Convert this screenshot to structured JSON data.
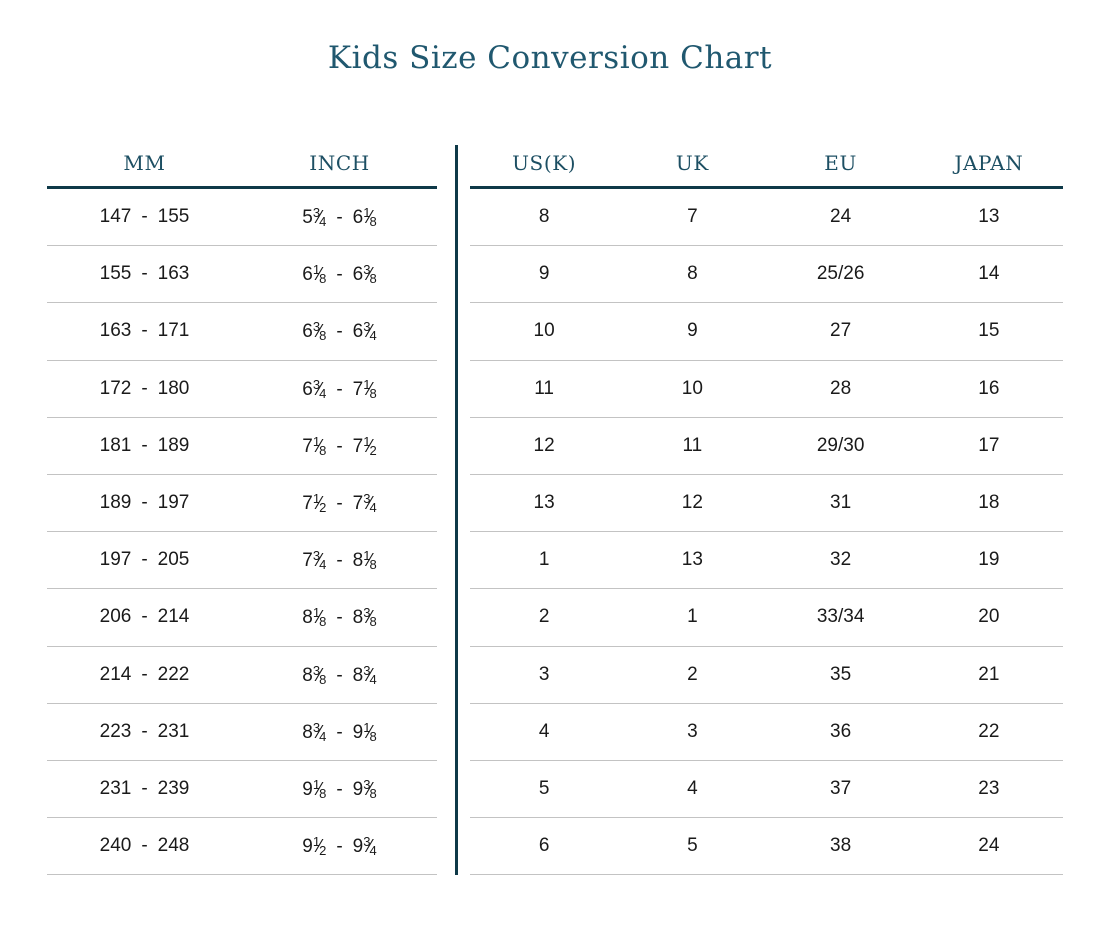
{
  "title": "Kids Size Conversion Chart",
  "colors": {
    "title_text": "#20586f",
    "header_text": "#1d4f63",
    "heavy_rule": "#0e3948",
    "row_divider": "#c3c3c3",
    "body_text": "#1a1a1a",
    "background": "#ffffff"
  },
  "chart_data": {
    "type": "table",
    "title": "Kids Size Conversion Chart",
    "columns": [
      "MM",
      "INCH",
      "US(K)",
      "UK",
      "EU",
      "JAPAN"
    ],
    "rows": [
      [
        "147 - 155",
        "5 3/4 - 6 1/8",
        "8",
        "7",
        "24",
        "13"
      ],
      [
        "155 - 163",
        "6 1/8 - 6 3/8",
        "9",
        "8",
        "25/26",
        "14"
      ],
      [
        "163 - 171",
        "6 3/8 - 6 3/4",
        "10",
        "9",
        "27",
        "15"
      ],
      [
        "172 - 180",
        "6 3/4 - 7 1/8",
        "11",
        "10",
        "28",
        "16"
      ],
      [
        "181 - 189",
        "7 1/8 - 7 1/2",
        "12",
        "11",
        "29/30",
        "17"
      ],
      [
        "189 - 197",
        "7 1/2 - 7 3/4",
        "13",
        "12",
        "31",
        "18"
      ],
      [
        "197 - 205",
        "7 3/4 - 8 1/8",
        "1",
        "13",
        "32",
        "19"
      ],
      [
        "206 - 214",
        "8 1/8 - 8 3/8",
        "2",
        "1",
        "33/34",
        "20"
      ],
      [
        "214 - 222",
        "8 3/8 - 8 3/4",
        "3",
        "2",
        "35",
        "21"
      ],
      [
        "223 - 231",
        "8 3/4 - 9 1/8",
        "4",
        "3",
        "36",
        "22"
      ],
      [
        "231 - 239",
        "9 1/8 - 9 3/8",
        "5",
        "4",
        "37",
        "23"
      ],
      [
        "240 - 248",
        "9 1/2 - 9 3/4",
        "6",
        "5",
        "38",
        "24"
      ]
    ],
    "layout": {
      "left_table_columns": [
        "MM",
        "INCH"
      ],
      "right_table_columns": [
        "US(K)",
        "UK",
        "EU",
        "JAPAN"
      ],
      "divider_between": true,
      "grid": "horizontal-rules-only"
    }
  }
}
